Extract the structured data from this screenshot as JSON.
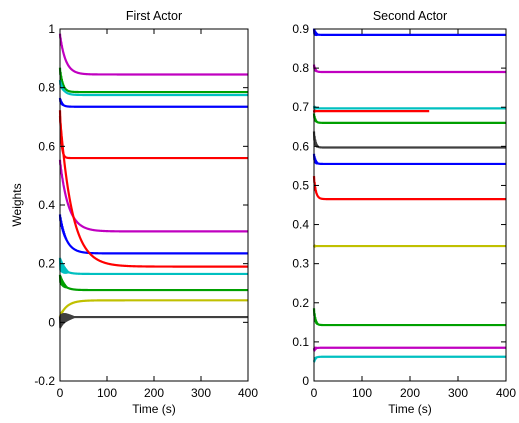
{
  "chart_data": [
    {
      "type": "line",
      "title": "First Actor",
      "xlabel": "Time (s)",
      "ylabel": "Weights",
      "xlim": [
        0,
        400
      ],
      "ylim": [
        -0.2,
        1
      ],
      "xticks": [
        "0",
        "100",
        "200",
        "300",
        "400"
      ],
      "yticks": [
        "-0.2",
        "0",
        "0.2",
        "0.4",
        "0.6",
        "0.8",
        "1"
      ],
      "grid": false,
      "legend": "none",
      "series": [
        {
          "color": "#c000c0",
          "start": 0.98,
          "final": 0.845,
          "tau": 12,
          "noise": 0.004,
          "noise_dur": 6
        },
        {
          "color": "#00a000",
          "start": 0.86,
          "final": 0.785,
          "tau": 6,
          "noise": 0.008,
          "noise_dur": 10
        },
        {
          "color": "#00c0c0",
          "start": 0.82,
          "final": 0.775,
          "tau": 8,
          "noise": 0.006,
          "noise_dur": 10
        },
        {
          "color": "#0000ff",
          "start": 0.76,
          "final": 0.735,
          "tau": 5,
          "noise": 0.005,
          "noise_dur": 8
        },
        {
          "color": "#ff0000",
          "start": 0.72,
          "final": 0.56,
          "tau": 3,
          "noise": 0.003,
          "noise_dur": 5
        },
        {
          "color": "#c000c0",
          "start": 0.55,
          "final": 0.31,
          "tau": 18,
          "noise": 0.004,
          "noise_dur": 8
        },
        {
          "color": "#0000ff",
          "start": 0.36,
          "final": 0.235,
          "tau": 14,
          "noise": 0.008,
          "noise_dur": 15
        },
        {
          "color": "#ff0000",
          "start": 0.7,
          "final": 0.19,
          "tau": 26,
          "noise": 0.003,
          "noise_dur": 6
        },
        {
          "color": "#00c0c0",
          "start": 0.2,
          "final": 0.165,
          "tau": 10,
          "noise": 0.02,
          "noise_dur": 18
        },
        {
          "color": "#00a000",
          "start": 0.15,
          "final": 0.11,
          "tau": 10,
          "noise": 0.012,
          "noise_dur": 15
        },
        {
          "color": "#c0c000",
          "start": 0.02,
          "final": 0.075,
          "tau": 15,
          "noise": 0.004,
          "noise_dur": 8
        },
        {
          "color": "#404040",
          "start": 0.0,
          "final": 0.018,
          "tau": 6,
          "noise": 0.02,
          "noise_dur": 30
        }
      ]
    },
    {
      "type": "line",
      "title": "Second Actor",
      "xlabel": "Time (s)",
      "ylabel": "",
      "xlim": [
        0,
        400
      ],
      "ylim": [
        0,
        0.9
      ],
      "xticks": [
        "0",
        "100",
        "200",
        "300",
        "400"
      ],
      "yticks": [
        "0",
        "0.1",
        "0.2",
        "0.3",
        "0.4",
        "0.5",
        "0.6",
        "0.7",
        "0.8",
        "0.9"
      ],
      "grid": false,
      "legend": "none",
      "series": [
        {
          "color": "#0000ff",
          "start": 0.895,
          "final": 0.885,
          "tau": 3,
          "noise": 0.006,
          "noise_dur": 8
        },
        {
          "color": "#c000c0",
          "start": 0.805,
          "final": 0.79,
          "tau": 3,
          "noise": 0.004,
          "noise_dur": 6
        },
        {
          "color": "#00c0c0",
          "start": 0.7,
          "final": 0.697,
          "tau": 3,
          "noise": 0.003,
          "noise_dur": 6
        },
        {
          "color": "#ff0000",
          "start": 0.69,
          "final": 0.69,
          "tau": 3,
          "noise": 0.002,
          "noise_dur": 4,
          "end": 240
        },
        {
          "color": "#00a000",
          "start": 0.68,
          "final": 0.66,
          "tau": 3,
          "noise": 0.004,
          "noise_dur": 6
        },
        {
          "color": "#404040",
          "start": 0.63,
          "final": 0.597,
          "tau": 3,
          "noise": 0.008,
          "noise_dur": 8
        },
        {
          "color": "#0000ff",
          "start": 0.575,
          "final": 0.555,
          "tau": 3,
          "noise": 0.006,
          "noise_dur": 8
        },
        {
          "color": "#ff0000",
          "start": 0.52,
          "final": 0.465,
          "tau": 4,
          "noise": 0.004,
          "noise_dur": 6
        },
        {
          "color": "#c0c000",
          "start": 0.345,
          "final": 0.345,
          "tau": 2,
          "noise": 0.002,
          "noise_dur": 4
        },
        {
          "color": "#00a000",
          "start": 0.18,
          "final": 0.143,
          "tau": 3,
          "noise": 0.006,
          "noise_dur": 8
        },
        {
          "color": "#c000c0",
          "start": 0.08,
          "final": 0.085,
          "tau": 3,
          "noise": 0.004,
          "noise_dur": 6
        },
        {
          "color": "#00c0c0",
          "start": 0.05,
          "final": 0.062,
          "tau": 3,
          "noise": 0.003,
          "noise_dur": 6
        }
      ]
    }
  ]
}
